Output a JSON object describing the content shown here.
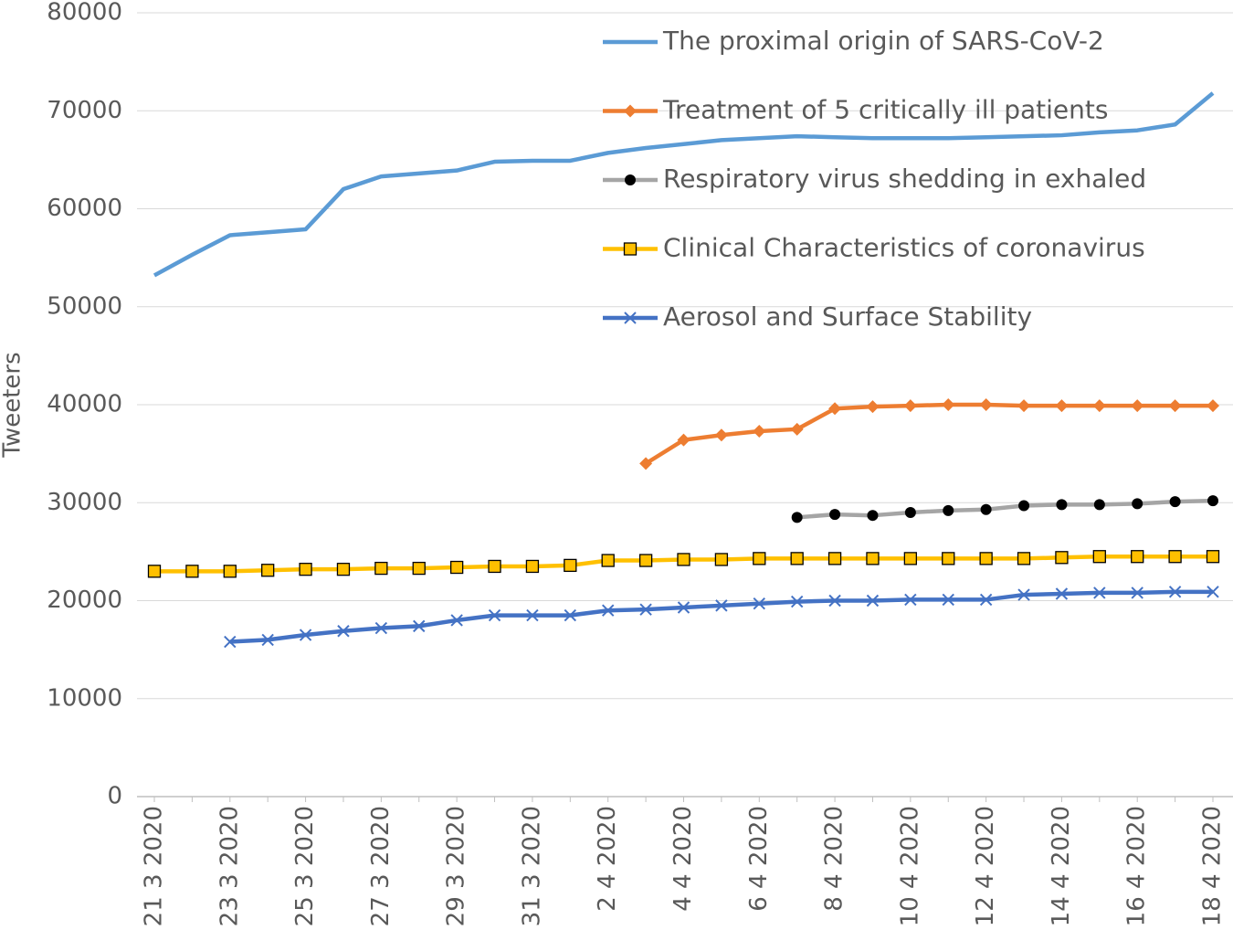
{
  "chart_data": {
    "type": "line",
    "y_label": "Tweeters",
    "categories": [
      "21 3 2020",
      null,
      "23 3 2020",
      null,
      "25 3 2020",
      null,
      "27 3 2020",
      null,
      "29 3 2020",
      null,
      "31 3 2020",
      null,
      "2 4 2020",
      null,
      "4 4 2020",
      null,
      "6 4 2020",
      null,
      "8 4 2020",
      null,
      "10 4 2020",
      null,
      "12 4 2020",
      null,
      "14 4 2020",
      null,
      "16 4 2020",
      null,
      "18 4 2020"
    ],
    "ylim": [
      0,
      80000
    ],
    "yticks": [
      0,
      10000,
      20000,
      30000,
      40000,
      50000,
      60000,
      70000,
      80000
    ],
    "grid": true,
    "series": [
      {
        "name": "The proximal origin of SARS-CoV-2",
        "color": "#5b9bd5",
        "marker": "none",
        "values": [
          53200,
          55300,
          57300,
          57600,
          57900,
          62000,
          63300,
          63600,
          63900,
          64800,
          64900,
          64900,
          65700,
          66200,
          66600,
          67000,
          67200,
          67400,
          67300,
          67200,
          67200,
          67200,
          67300,
          67400,
          67500,
          67800,
          68000,
          68600,
          71800
        ]
      },
      {
        "name": "Treatment of 5 critically ill patients",
        "color": "#ed7d31",
        "marker": "diamond",
        "values": [
          null,
          null,
          null,
          null,
          null,
          null,
          null,
          null,
          null,
          null,
          null,
          null,
          null,
          34000,
          36400,
          36900,
          37300,
          37500,
          39600,
          39800,
          39900,
          40000,
          40000,
          39900,
          39900,
          39900,
          39900,
          39900,
          39900
        ]
      },
      {
        "name": "Respiratory virus shedding in exhaled",
        "color": "#a5a5a5",
        "marker": "circle",
        "values": [
          null,
          null,
          null,
          null,
          null,
          null,
          null,
          null,
          null,
          null,
          null,
          null,
          null,
          null,
          null,
          null,
          null,
          28500,
          28800,
          28700,
          29000,
          29200,
          29300,
          29700,
          29800,
          29800,
          29900,
          30100,
          30200
        ]
      },
      {
        "name": "Clinical Characteristics of coronavirus",
        "color": "#ffc000",
        "marker": "square",
        "values": [
          23000,
          23000,
          23000,
          23100,
          23200,
          23200,
          23300,
          23300,
          23400,
          23500,
          23500,
          23600,
          24100,
          24100,
          24200,
          24200,
          24300,
          24300,
          24300,
          24300,
          24300,
          24300,
          24300,
          24300,
          24400,
          24500,
          24500,
          24500,
          24500
        ]
      },
      {
        "name": "Aerosol and Surface Stability",
        "color": "#4472c4",
        "marker": "x",
        "values": [
          null,
          null,
          15800,
          16000,
          16500,
          16900,
          17200,
          17400,
          18000,
          18500,
          18500,
          18500,
          19000,
          19100,
          19300,
          19500,
          19700,
          19900,
          20000,
          20000,
          20100,
          20100,
          20100,
          20600,
          20700,
          20800,
          20800,
          20900,
          20900
        ]
      }
    ]
  }
}
